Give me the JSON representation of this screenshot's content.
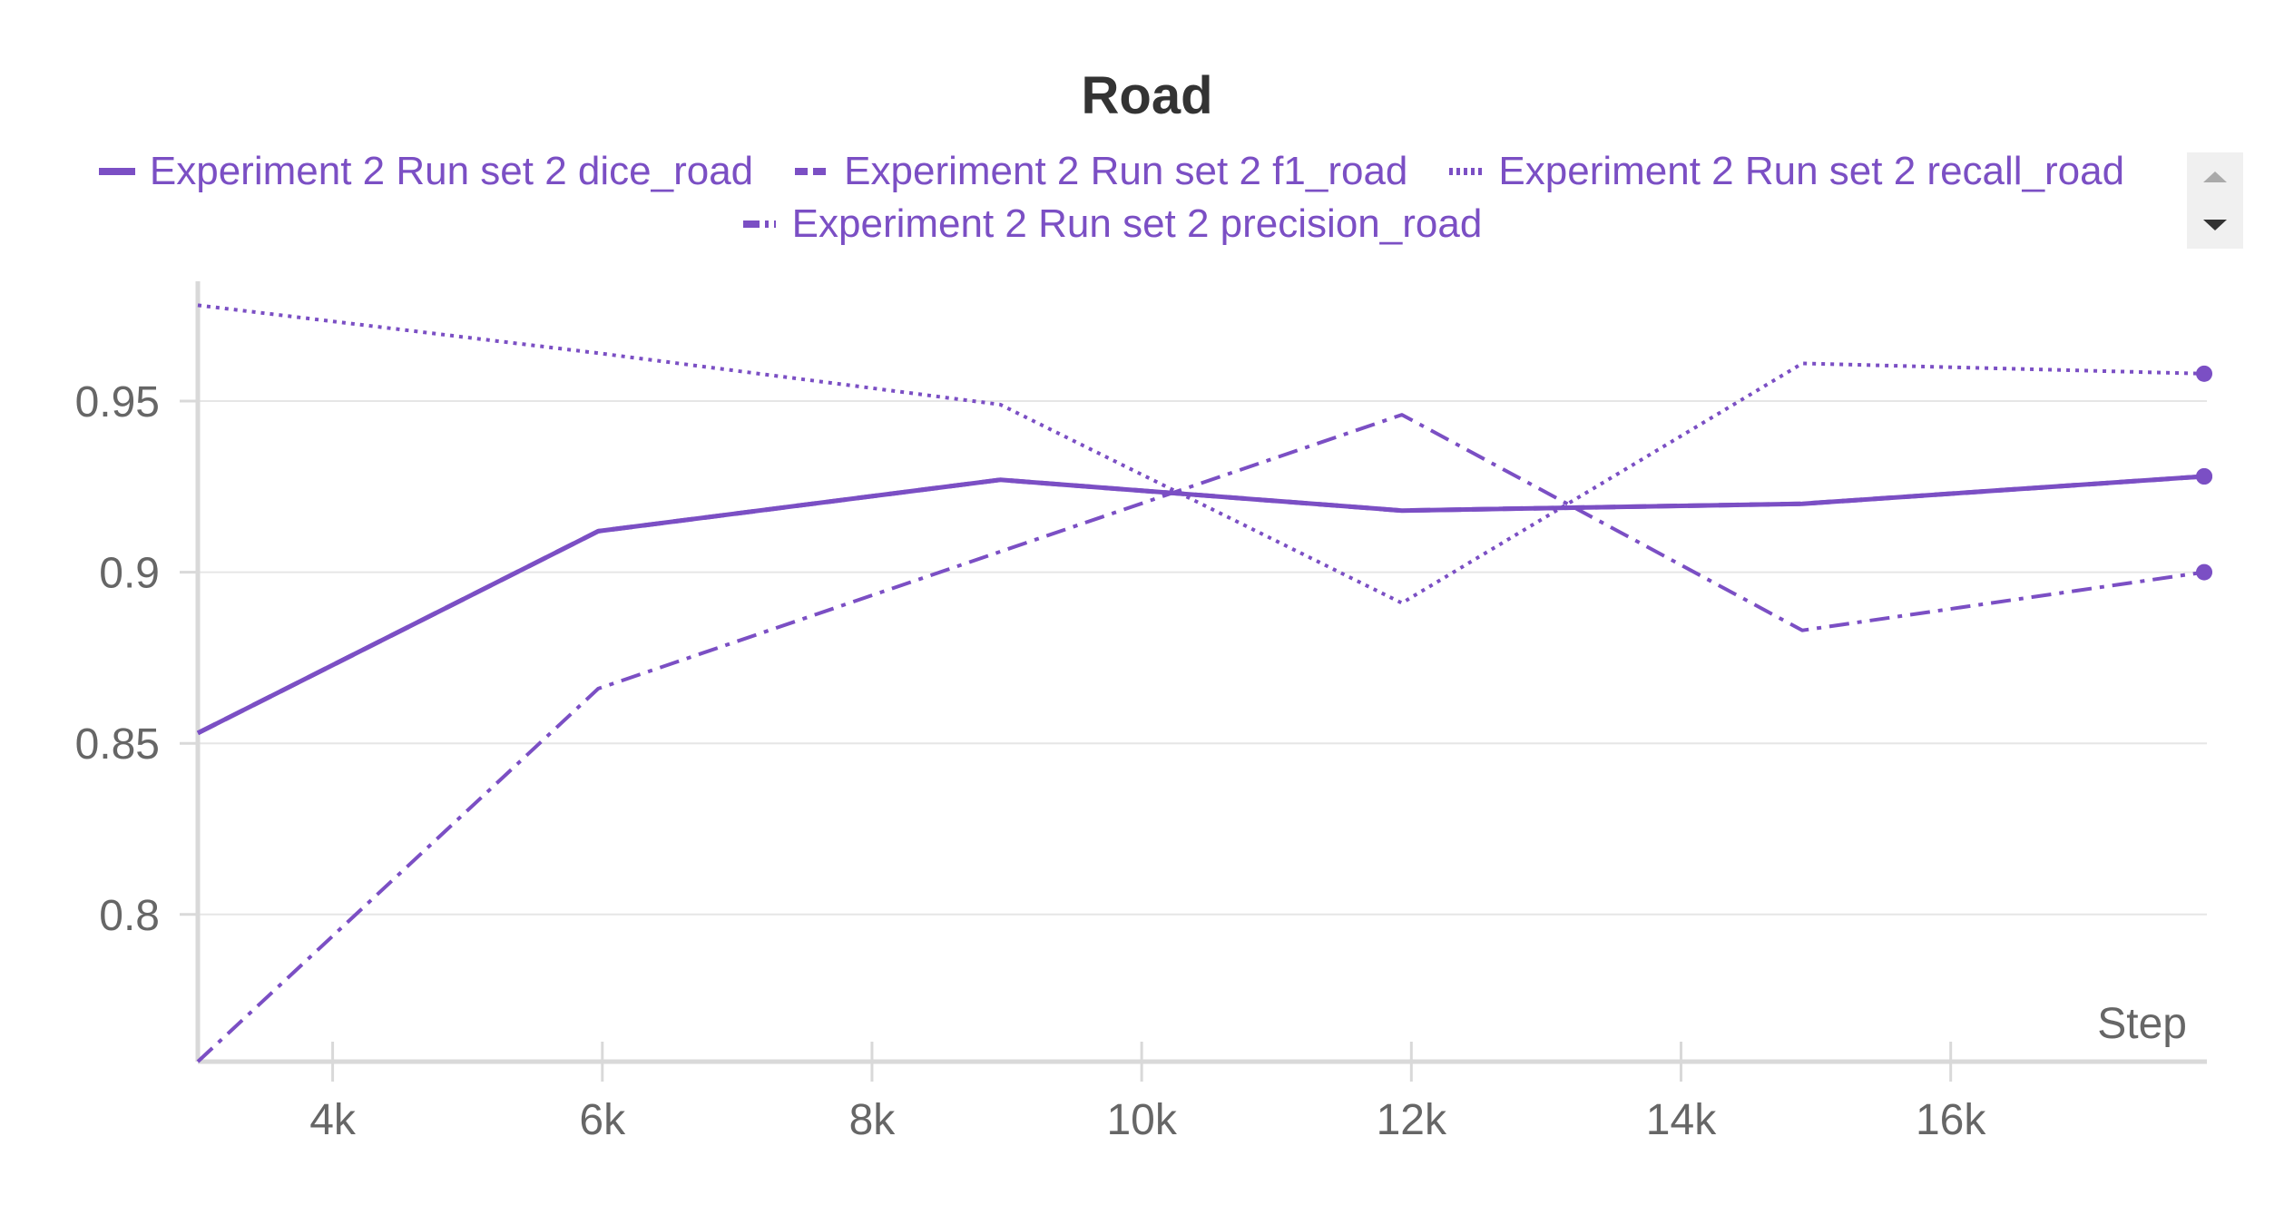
{
  "colors": {
    "series": "#7b4fc4",
    "grid": "#e6e6e6",
    "axis": "#d9d9d9",
    "tick_text": "#666666",
    "title_text": "#333333"
  },
  "scroller": {
    "up_icon": "triangle-up-icon",
    "down_icon": "triangle-down-icon"
  },
  "chart_data": {
    "type": "line",
    "title": "Road",
    "xlabel": "Step",
    "ylabel": "",
    "xlim": [
      3000,
      17900
    ],
    "ylim": [
      0.757,
      0.985
    ],
    "x_ticks": [
      4000,
      6000,
      8000,
      10000,
      12000,
      14000,
      16000
    ],
    "x_tick_labels": [
      "4k",
      "6k",
      "8k",
      "10k",
      "12k",
      "14k",
      "16k"
    ],
    "y_ticks": [
      0.8,
      0.85,
      0.9,
      0.95
    ],
    "y_tick_labels": [
      "0.8",
      "0.85",
      "0.9",
      "0.95"
    ],
    "grid": true,
    "legend_position": "top",
    "series": [
      {
        "name": "Experiment 2 Run set 2 dice_road",
        "style": "solid",
        "x": [
          3000,
          5970,
          8950,
          11930,
          14900,
          17880
        ],
        "y": [
          0.853,
          0.912,
          0.927,
          0.918,
          0.92,
          0.928
        ]
      },
      {
        "name": "Experiment 2 Run set 2 f1_road",
        "style": "dashed",
        "x": [
          3000,
          5970,
          8950,
          11930,
          14900,
          17880
        ],
        "y": [
          0.853,
          0.912,
          0.927,
          0.918,
          0.92,
          0.928
        ]
      },
      {
        "name": "Experiment 2 Run set 2 recall_road",
        "style": "dotted",
        "x": [
          3000,
          5970,
          8950,
          11930,
          14900,
          17880
        ],
        "y": [
          0.978,
          0.964,
          0.949,
          0.891,
          0.961,
          0.958
        ]
      },
      {
        "name": "Experiment 2 Run set 2 precision_road",
        "style": "dashdot",
        "x": [
          3000,
          5970,
          8950,
          11930,
          14900,
          17880
        ],
        "y": [
          0.757,
          0.866,
          0.906,
          0.946,
          0.883,
          0.9
        ]
      }
    ]
  }
}
